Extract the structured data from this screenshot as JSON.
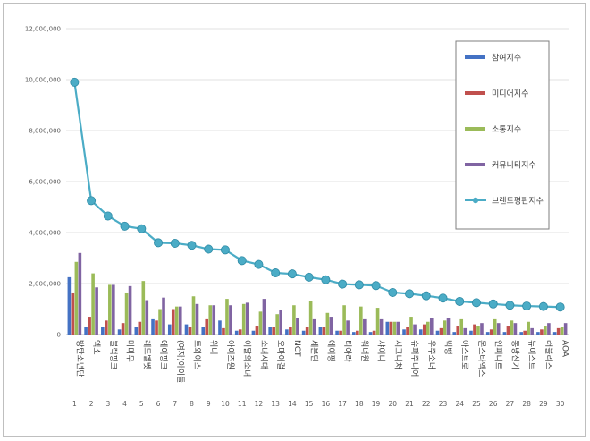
{
  "chart_data": {
    "type": "bar+line",
    "ylim": [
      0,
      12000000
    ],
    "yticks": [
      "0",
      "2,000,000",
      "4,000,000",
      "6,000,000",
      "8,000,000",
      "10,000,000",
      "12,000,000"
    ],
    "ytick_values": [
      0,
      2000000,
      4000000,
      6000000,
      8000000,
      10000000,
      12000000
    ],
    "grid": true,
    "legend_position": "top-right",
    "categories": [
      "방탄소년단",
      "엑소",
      "블랙핑크",
      "마마무",
      "레드벨벳",
      "에이핑크",
      "(여자)아이들",
      "트와이스",
      "위너",
      "아이즈원",
      "이달의소녀",
      "소녀시대",
      "오마이걸",
      "NCT",
      "세븐틴",
      "에이핑",
      "티아라",
      "워너원",
      "샤이니",
      "시그니처",
      "슈퍼주니어",
      "우주소녀",
      "빅뱅",
      "아스트로",
      "몬스타엑스",
      "인피니트",
      "동방신기",
      "뉴이스트",
      "러블리즈",
      "AOA"
    ],
    "numbers": [
      "1",
      "2",
      "3",
      "4",
      "5",
      "6",
      "7",
      "8",
      "9",
      "10",
      "11",
      "12",
      "13",
      "14",
      "15",
      "16",
      "17",
      "18",
      "19",
      "20",
      "21",
      "22",
      "23",
      "24",
      "25",
      "26",
      "27",
      "28",
      "29",
      "30"
    ],
    "series": [
      {
        "name": "참여지수",
        "color": "#4472c4",
        "values": [
          2250000,
          300000,
          300000,
          200000,
          300000,
          600000,
          400000,
          400000,
          300000,
          550000,
          150000,
          150000,
          300000,
          200000,
          150000,
          300000,
          150000,
          100000,
          100000,
          500000,
          200000,
          200000,
          150000,
          100000,
          150000,
          100000,
          100000,
          100000,
          100000,
          100000
        ]
      },
      {
        "name": "미디어지수",
        "color": "#c0504d",
        "values": [
          1650000,
          700000,
          550000,
          450000,
          500000,
          550000,
          1000000,
          300000,
          600000,
          250000,
          200000,
          350000,
          300000,
          300000,
          300000,
          300000,
          150000,
          150000,
          150000,
          500000,
          300000,
          400000,
          250000,
          350000,
          400000,
          200000,
          350000,
          150000,
          200000,
          250000
        ]
      },
      {
        "name": "소통지수",
        "color": "#9bbb59",
        "values": [
          2850000,
          2400000,
          1950000,
          1650000,
          2100000,
          1000000,
          1100000,
          1500000,
          1150000,
          1400000,
          1200000,
          900000,
          800000,
          1150000,
          1300000,
          850000,
          1150000,
          1100000,
          1050000,
          500000,
          700000,
          500000,
          550000,
          600000,
          350000,
          600000,
          550000,
          500000,
          350000,
          300000
        ]
      },
      {
        "name": "커뮤니티지수",
        "color": "#8064a2",
        "values": [
          3200000,
          1850000,
          1950000,
          1900000,
          1350000,
          1450000,
          1100000,
          1200000,
          1150000,
          1150000,
          1250000,
          1400000,
          950000,
          650000,
          600000,
          700000,
          550000,
          600000,
          600000,
          500000,
          400000,
          650000,
          650000,
          250000,
          450000,
          450000,
          450000,
          250000,
          450000,
          450000
        ]
      },
      {
        "name": "브랜드평판지수",
        "color": "#4bacc6",
        "type": "line",
        "values": [
          9900000,
          5250000,
          4650000,
          4250000,
          4150000,
          3600000,
          3580000,
          3500000,
          3350000,
          3320000,
          2900000,
          2750000,
          2420000,
          2380000,
          2250000,
          2150000,
          1980000,
          1950000,
          1920000,
          1650000,
          1600000,
          1520000,
          1430000,
          1300000,
          1250000,
          1200000,
          1150000,
          1120000,
          1100000,
          1080000
        ]
      }
    ]
  }
}
